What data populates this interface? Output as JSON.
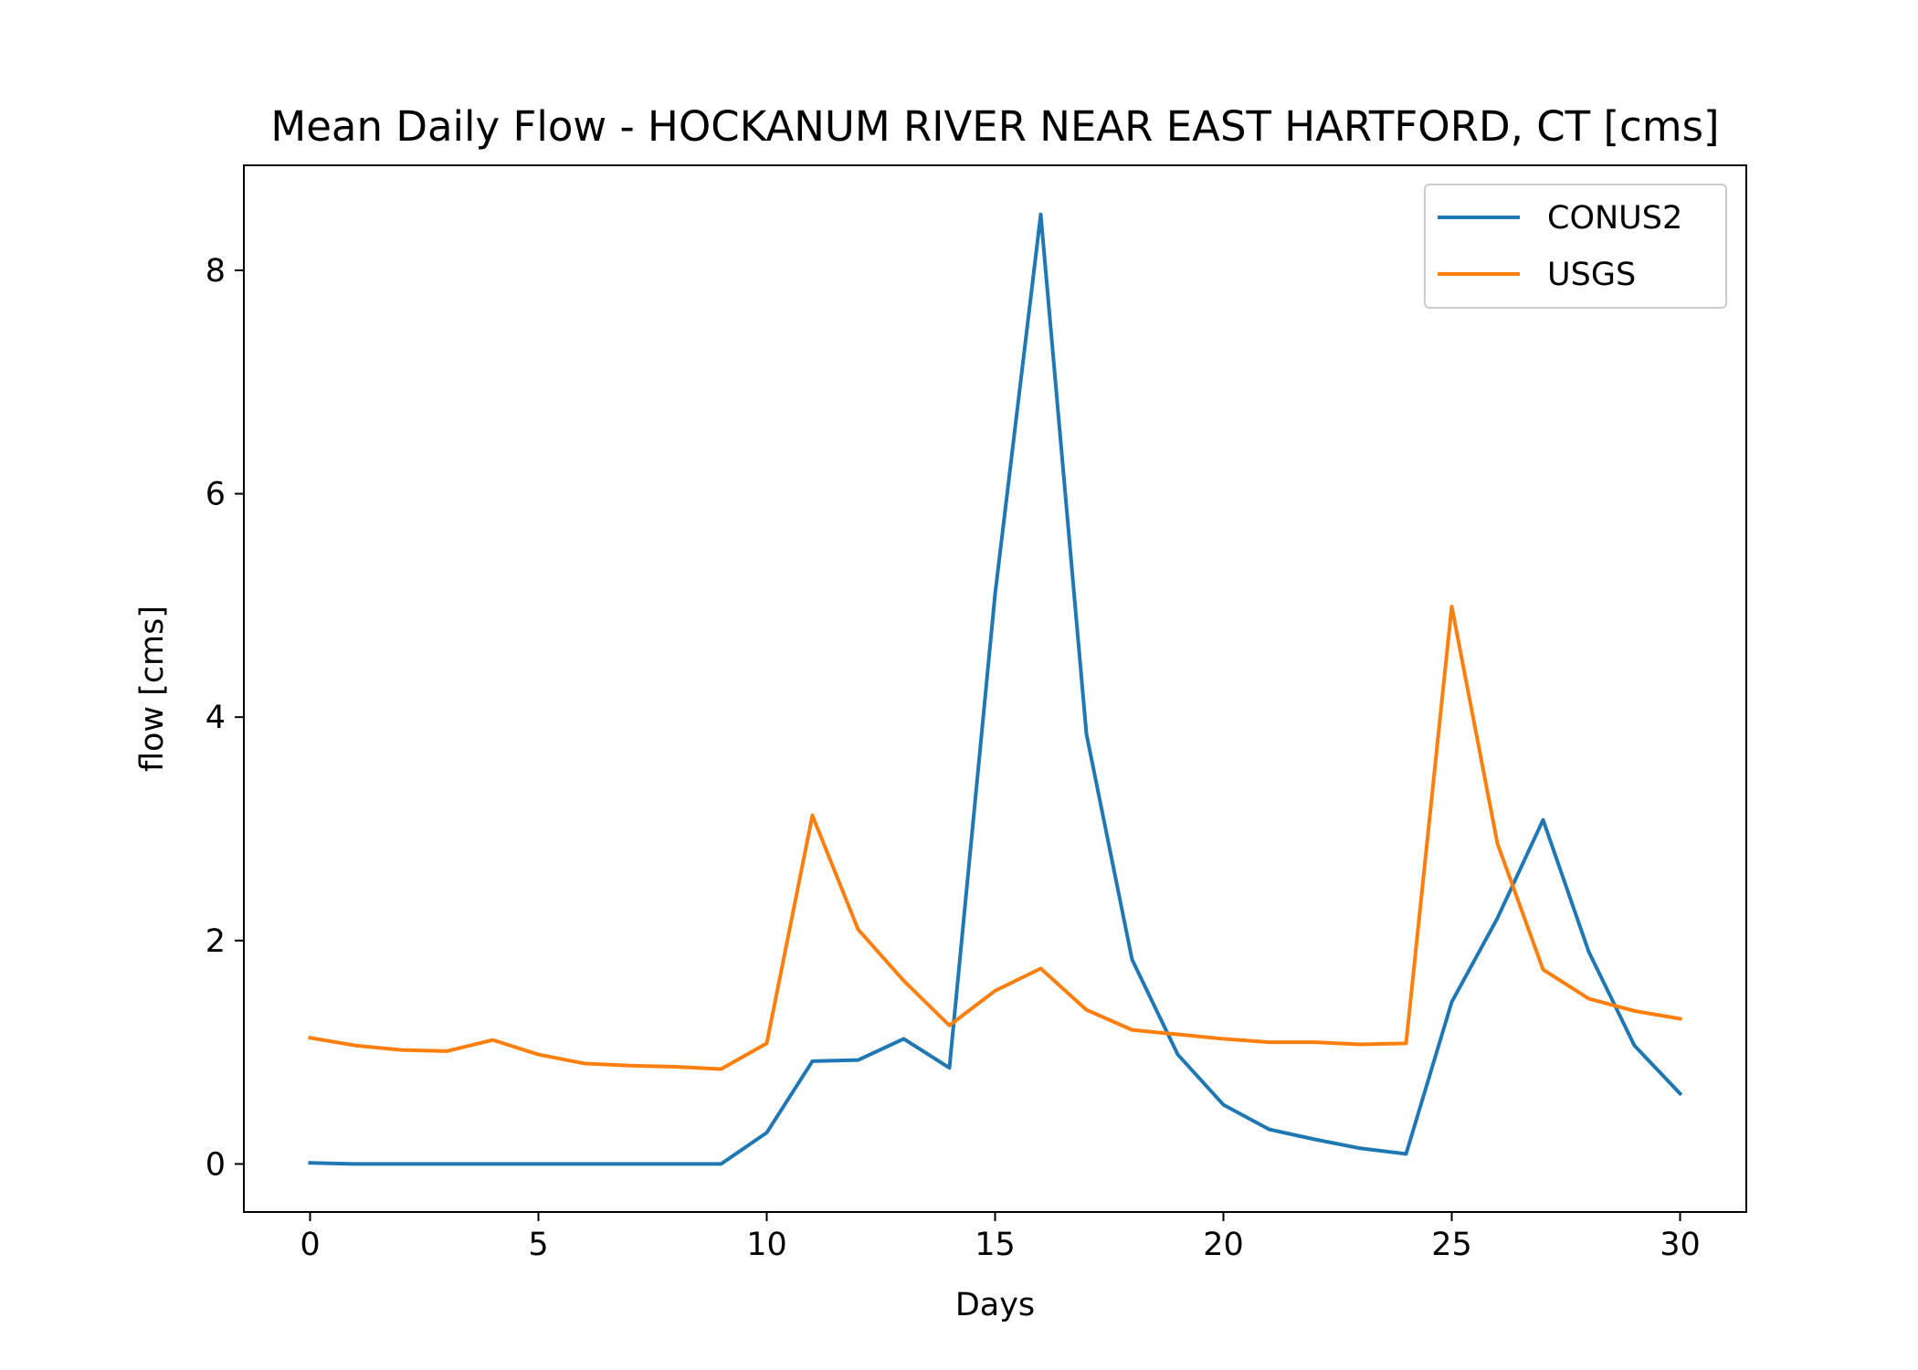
{
  "chart_data": {
    "type": "line",
    "title": "Mean Daily Flow - HOCKANUM RIVER NEAR EAST HARTFORD, CT [cms]",
    "xlabel": "Days",
    "ylabel": "flow [cms]",
    "xlim": [
      -1.45,
      31.45
    ],
    "ylim": [
      -0.43,
      8.94
    ],
    "xticks": [
      0,
      5,
      10,
      15,
      20,
      25,
      30
    ],
    "yticks": [
      0,
      2,
      4,
      6,
      8
    ],
    "grid": false,
    "legend_position": "top-right",
    "x": [
      0,
      1,
      2,
      3,
      4,
      5,
      6,
      7,
      8,
      9,
      10,
      11,
      12,
      13,
      14,
      15,
      16,
      17,
      18,
      19,
      20,
      21,
      22,
      23,
      24,
      25,
      26,
      27,
      28,
      29,
      30
    ],
    "series": [
      {
        "name": "CONUS2",
        "color": "#1f77b4",
        "values": [
          0.01,
          0.0,
          0.0,
          0.0,
          0.0,
          0.0,
          0.0,
          0.0,
          0.0,
          0.0,
          0.28,
          0.92,
          0.93,
          1.12,
          0.86,
          5.1,
          8.5,
          3.85,
          1.83,
          0.98,
          0.53,
          0.31,
          0.22,
          0.14,
          0.09,
          1.45,
          2.2,
          3.08,
          1.9,
          1.06,
          0.63
        ]
      },
      {
        "name": "USGS",
        "color": "#ff7f0e",
        "values": [
          1.13,
          1.06,
          1.02,
          1.01,
          1.11,
          0.98,
          0.9,
          0.88,
          0.87,
          0.85,
          1.08,
          3.12,
          2.1,
          1.64,
          1.24,
          1.55,
          1.75,
          1.38,
          1.2,
          1.16,
          1.12,
          1.09,
          1.09,
          1.07,
          1.08,
          4.99,
          2.87,
          1.74,
          1.48,
          1.37,
          1.3
        ]
      }
    ]
  }
}
